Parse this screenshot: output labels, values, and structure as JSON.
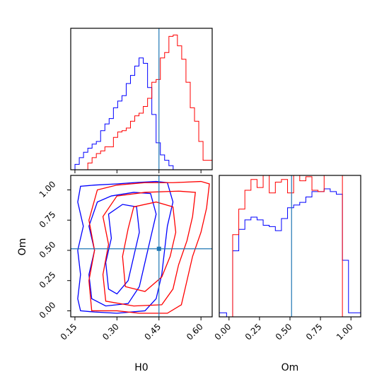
{
  "chart_data": {
    "type": "corner",
    "parameters": [
      "H0",
      "Om"
    ],
    "truth": {
      "H0": 0.45,
      "Om": 0.513
    },
    "colors": {
      "blue": "#0000ff",
      "red": "#ff0000",
      "truth": "#1f77b4",
      "axes": "#000000"
    },
    "grid": false,
    "panels": [
      {
        "id": "H0-marginal",
        "type": "histogram",
        "param": "H0",
        "xlim": [
          0.135,
          0.64
        ],
        "xticks": [
          0.15,
          0.3,
          0.45,
          0.6
        ],
        "xtick_labels": [],
        "ylim": [
          0,
          1.05
        ],
        "bins": [
          0.135,
          0.1502,
          0.1655,
          0.1807,
          0.196,
          0.2112,
          0.2264,
          0.2417,
          0.2569,
          0.2721,
          0.2874,
          0.3026,
          0.3179,
          0.3331,
          0.3483,
          0.3636,
          0.3788,
          0.394,
          0.4093,
          0.4245,
          0.4398,
          0.455,
          0.4702,
          0.4855,
          0.5007,
          0.5159,
          0.5312,
          0.5464,
          0.5617,
          0.5769,
          0.5921,
          0.6074,
          0.6226,
          0.64
        ],
        "series": [
          {
            "name": "",
            "color": "blue",
            "values": [
              0.0,
              0.04,
              0.09,
              0.13,
              0.16,
              0.19,
              0.21,
              0.29,
              0.34,
              0.38,
              0.46,
              0.51,
              0.55,
              0.64,
              0.7,
              0.77,
              0.83,
              0.79,
              0.61,
              0.41,
              0.2,
              0.11,
              0.07,
              0.03,
              0.0,
              0.0,
              0.0,
              0.0,
              0.0,
              0.0,
              0.0,
              0.0,
              0.0
            ]
          },
          {
            "name": "",
            "color": "red",
            "values": [
              0.0,
              0.0,
              0.0,
              0.0,
              0.05,
              0.09,
              0.12,
              0.14,
              0.17,
              0.17,
              0.24,
              0.28,
              0.29,
              0.31,
              0.36,
              0.4,
              0.42,
              0.47,
              0.53,
              0.65,
              0.67,
              0.83,
              0.87,
              0.99,
              1.0,
              0.92,
              0.82,
              0.65,
              0.46,
              0.36,
              0.21,
              0.07,
              0.07
            ]
          }
        ]
      },
      {
        "id": "Om-marginal",
        "type": "histogram",
        "param": "Om",
        "xlim": [
          -0.08,
          1.08
        ],
        "xticks": [
          0.0,
          0.25,
          0.5,
          0.75,
          1.0
        ],
        "xtick_labels": [
          "0.00",
          "0.25",
          "0.50",
          "0.75",
          "1.00"
        ],
        "xlabel": "Om",
        "ylim": [
          0,
          1.05
        ],
        "bins": [
          -0.08,
          -0.02,
          0.03,
          0.08,
          0.13,
          0.18,
          0.23,
          0.28,
          0.33,
          0.38,
          0.43,
          0.48,
          0.53,
          0.58,
          0.63,
          0.68,
          0.73,
          0.78,
          0.83,
          0.88,
          0.93,
          0.98,
          1.03,
          1.08
        ],
        "series": [
          {
            "name": "",
            "color": "blue",
            "values": [
              0.03,
              0.0,
              0.49,
              0.65,
              0.72,
              0.74,
              0.72,
              0.68,
              0.67,
              0.64,
              0.73,
              0.81,
              0.83,
              0.85,
              0.89,
              0.93,
              0.93,
              0.95,
              0.93,
              0.91,
              0.42,
              0.03,
              0.03
            ]
          },
          {
            "name": "",
            "color": "red",
            "values": [
              0.0,
              0.0,
              0.61,
              0.8,
              0.94,
              1.02,
              0.96,
              1.1,
              0.92,
              1.0,
              1.02,
              0.92,
              1.05,
              1.01,
              1.04,
              0.94,
              0.93,
              1.05,
              1.08,
              1.1,
              0.0,
              0.0,
              0.0
            ]
          }
        ]
      },
      {
        "id": "H0-Om-joint",
        "type": "contour",
        "xparam": "H0",
        "yparam": "Om",
        "xlim": [
          0.135,
          0.64
        ],
        "ylim": [
          -0.05,
          1.12
        ],
        "xticks": [
          0.15,
          0.3,
          0.45,
          0.6
        ],
        "xtick_labels": [
          "0.15",
          "0.30",
          "0.45",
          "0.60"
        ],
        "yticks": [
          0.0,
          0.25,
          0.5,
          0.75,
          1.0
        ],
        "ytick_labels": [
          "0.00",
          "0.25",
          "0.50",
          "0.75",
          "1.00"
        ],
        "xlabel": "H0",
        "ylabel": "Om",
        "series": [
          {
            "name": "",
            "color": "blue",
            "contours": [
              [
                [
                  0.17,
                  0.0
                ],
                [
                  0.16,
                  0.1
                ],
                [
                  0.17,
                  0.3
                ],
                [
                  0.16,
                  0.5
                ],
                [
                  0.18,
                  0.7
                ],
                [
                  0.16,
                  0.9
                ],
                [
                  0.17,
                  1.03
                ],
                [
                  0.22,
                  1.04
                ],
                [
                  0.3,
                  1.05
                ],
                [
                  0.36,
                  1.06
                ],
                [
                  0.44,
                  1.07
                ],
                [
                  0.48,
                  1.06
                ],
                [
                  0.5,
                  0.9
                ],
                [
                  0.48,
                  0.7
                ],
                [
                  0.47,
                  0.5
                ],
                [
                  0.46,
                  0.3
                ],
                [
                  0.44,
                  0.1
                ],
                [
                  0.4,
                  0.0
                ],
                [
                  0.3,
                  -0.02
                ],
                [
                  0.22,
                  -0.01
                ],
                [
                  0.17,
                  0.0
                ]
              ],
              [
                [
                  0.21,
                  0.1
                ],
                [
                  0.2,
                  0.3
                ],
                [
                  0.22,
                  0.5
                ],
                [
                  0.2,
                  0.7
                ],
                [
                  0.23,
                  0.9
                ],
                [
                  0.28,
                  0.95
                ],
                [
                  0.36,
                  0.98
                ],
                [
                  0.42,
                  0.97
                ],
                [
                  0.44,
                  0.8
                ],
                [
                  0.42,
                  0.6
                ],
                [
                  0.4,
                  0.4
                ],
                [
                  0.38,
                  0.2
                ],
                [
                  0.34,
                  0.06
                ],
                [
                  0.26,
                  0.04
                ],
                [
                  0.21,
                  0.1
                ]
              ],
              [
                [
                  0.27,
                  0.18
                ],
                [
                  0.26,
                  0.4
                ],
                [
                  0.28,
                  0.6
                ],
                [
                  0.27,
                  0.8
                ],
                [
                  0.32,
                  0.88
                ],
                [
                  0.37,
                  0.86
                ],
                [
                  0.38,
                  0.65
                ],
                [
                  0.36,
                  0.45
                ],
                [
                  0.34,
                  0.25
                ],
                [
                  0.3,
                  0.14
                ],
                [
                  0.27,
                  0.18
                ]
              ]
            ]
          },
          {
            "name": "",
            "color": "red",
            "contours": [
              [
                [
                  0.21,
                  0.0
                ],
                [
                  0.2,
                  0.25
                ],
                [
                  0.22,
                  0.5
                ],
                [
                  0.2,
                  0.75
                ],
                [
                  0.23,
                  1.0
                ],
                [
                  0.3,
                  1.04
                ],
                [
                  0.4,
                  1.06
                ],
                [
                  0.5,
                  1.06
                ],
                [
                  0.6,
                  1.07
                ],
                [
                  0.63,
                  1.05
                ],
                [
                  0.62,
                  0.85
                ],
                [
                  0.6,
                  0.65
                ],
                [
                  0.57,
                  0.45
                ],
                [
                  0.55,
                  0.25
                ],
                [
                  0.53,
                  0.05
                ],
                [
                  0.48,
                  -0.02
                ],
                [
                  0.38,
                  -0.02
                ],
                [
                  0.3,
                  0.0
                ],
                [
                  0.21,
                  0.0
                ]
              ],
              [
                [
                  0.26,
                  0.08
                ],
                [
                  0.25,
                  0.3
                ],
                [
                  0.27,
                  0.55
                ],
                [
                  0.25,
                  0.78
                ],
                [
                  0.3,
                  0.95
                ],
                [
                  0.4,
                  0.98
                ],
                [
                  0.52,
                  0.99
                ],
                [
                  0.58,
                  0.98
                ],
                [
                  0.57,
                  0.78
                ],
                [
                  0.55,
                  0.58
                ],
                [
                  0.52,
                  0.38
                ],
                [
                  0.5,
                  0.18
                ],
                [
                  0.46,
                  0.05
                ],
                [
                  0.36,
                  0.04
                ],
                [
                  0.26,
                  0.08
                ]
              ],
              [
                [
                  0.33,
                  0.2
                ],
                [
                  0.32,
                  0.45
                ],
                [
                  0.34,
                  0.68
                ],
                [
                  0.36,
                  0.86
                ],
                [
                  0.44,
                  0.9
                ],
                [
                  0.5,
                  0.86
                ],
                [
                  0.51,
                  0.65
                ],
                [
                  0.49,
                  0.45
                ],
                [
                  0.46,
                  0.28
                ],
                [
                  0.4,
                  0.16
                ],
                [
                  0.33,
                  0.2
                ]
              ]
            ]
          }
        ]
      }
    ]
  }
}
